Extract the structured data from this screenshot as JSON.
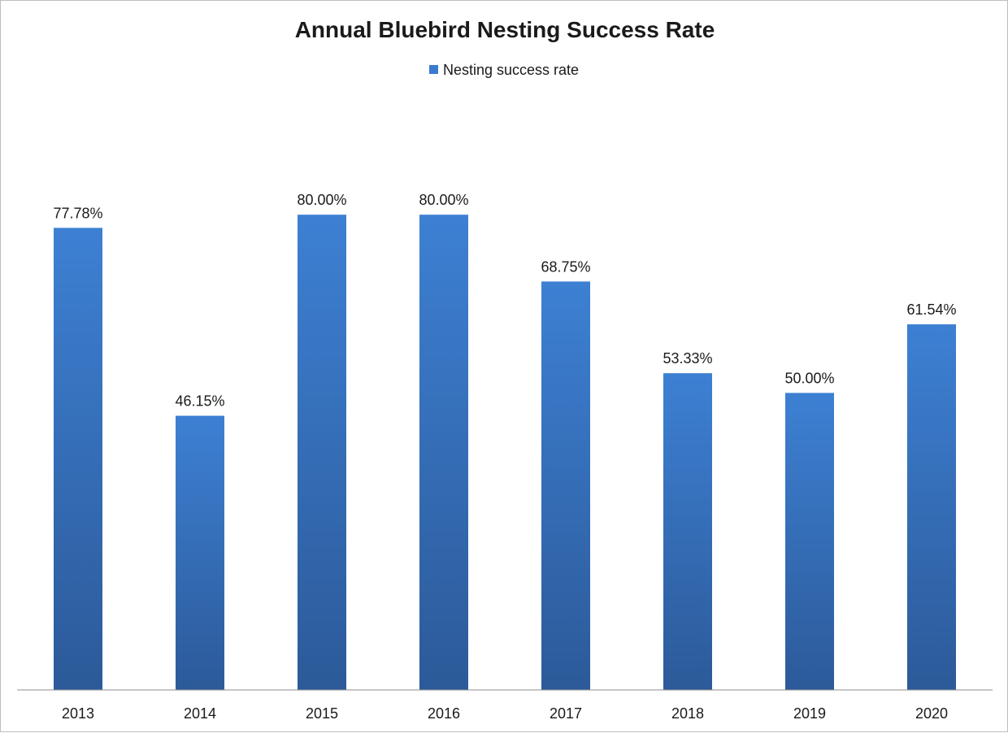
{
  "chart_data": {
    "type": "bar",
    "title": "Annual Bluebird Nesting Success Rate",
    "xlabel": "",
    "ylabel": "",
    "categories": [
      "2013",
      "2014",
      "2015",
      "2016",
      "2017",
      "2018",
      "2019",
      "2020"
    ],
    "series": [
      {
        "name": "Nesting success rate",
        "values": [
          77.78,
          46.15,
          80.0,
          80.0,
          68.75,
          53.33,
          50.0,
          61.54
        ],
        "labels": [
          "77.78%",
          "46.15%",
          "80.00%",
          "80.00%",
          "68.75%",
          "53.33%",
          "50.00%",
          "61.54%"
        ],
        "color": "#3a7bd0"
      }
    ],
    "ylim": [
      0,
      100
    ],
    "grid": false,
    "legend": "top-center",
    "value_unit": "%"
  }
}
